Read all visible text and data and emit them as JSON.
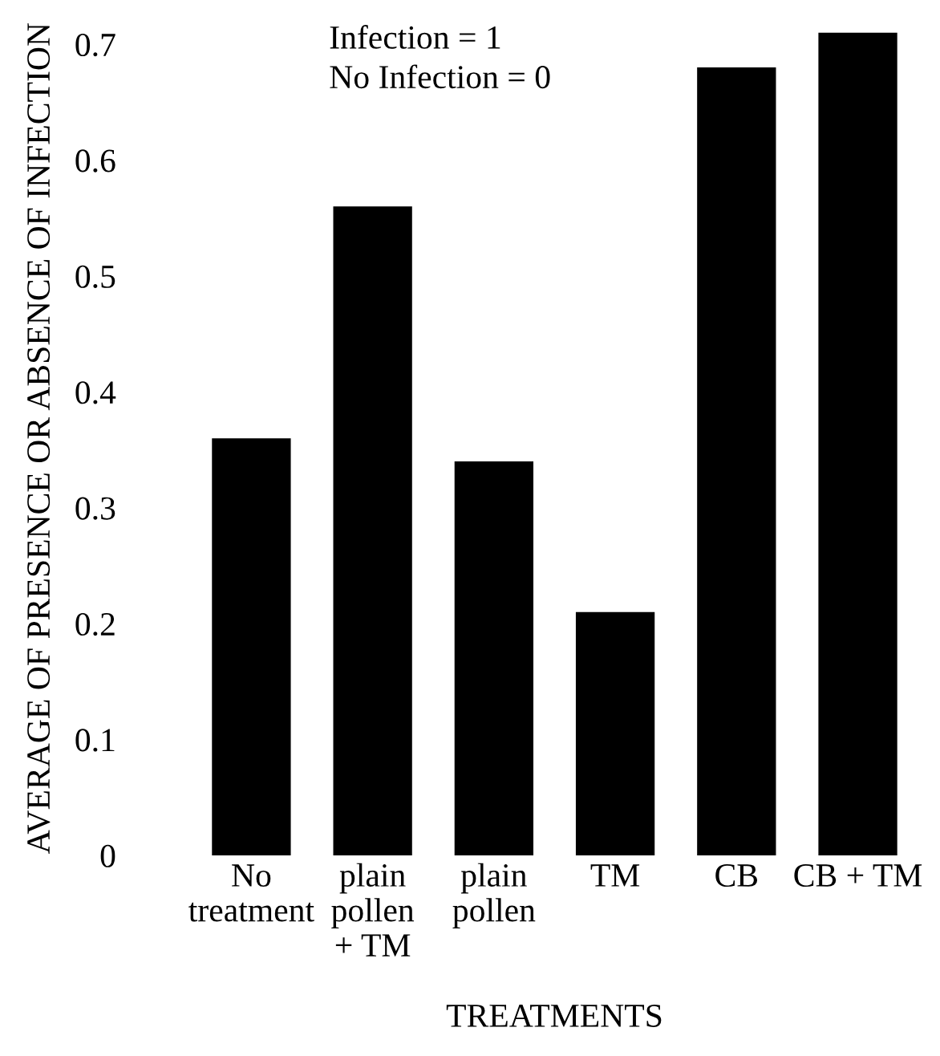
{
  "chart_data": {
    "type": "bar",
    "xlabel": "TREATMENTS",
    "ylabel": "AVERAGE OF PRESENCE OR ABSENCE OF INFECTION",
    "categories": [
      "No\ntreatment",
      "plain\npollen\n+ TM",
      "plain\npollen",
      "TM",
      "CB",
      "CB + TM"
    ],
    "values": [
      0.36,
      0.56,
      0.34,
      0.21,
      0.68,
      0.71
    ],
    "color": "#000000",
    "ylim": [
      0,
      0.72
    ],
    "yticks": [
      0,
      0.1,
      0.2,
      0.3,
      0.4,
      0.5,
      0.6,
      0.7
    ],
    "annotations": [
      "Infection = 1\nNo Infection = 0"
    ]
  }
}
